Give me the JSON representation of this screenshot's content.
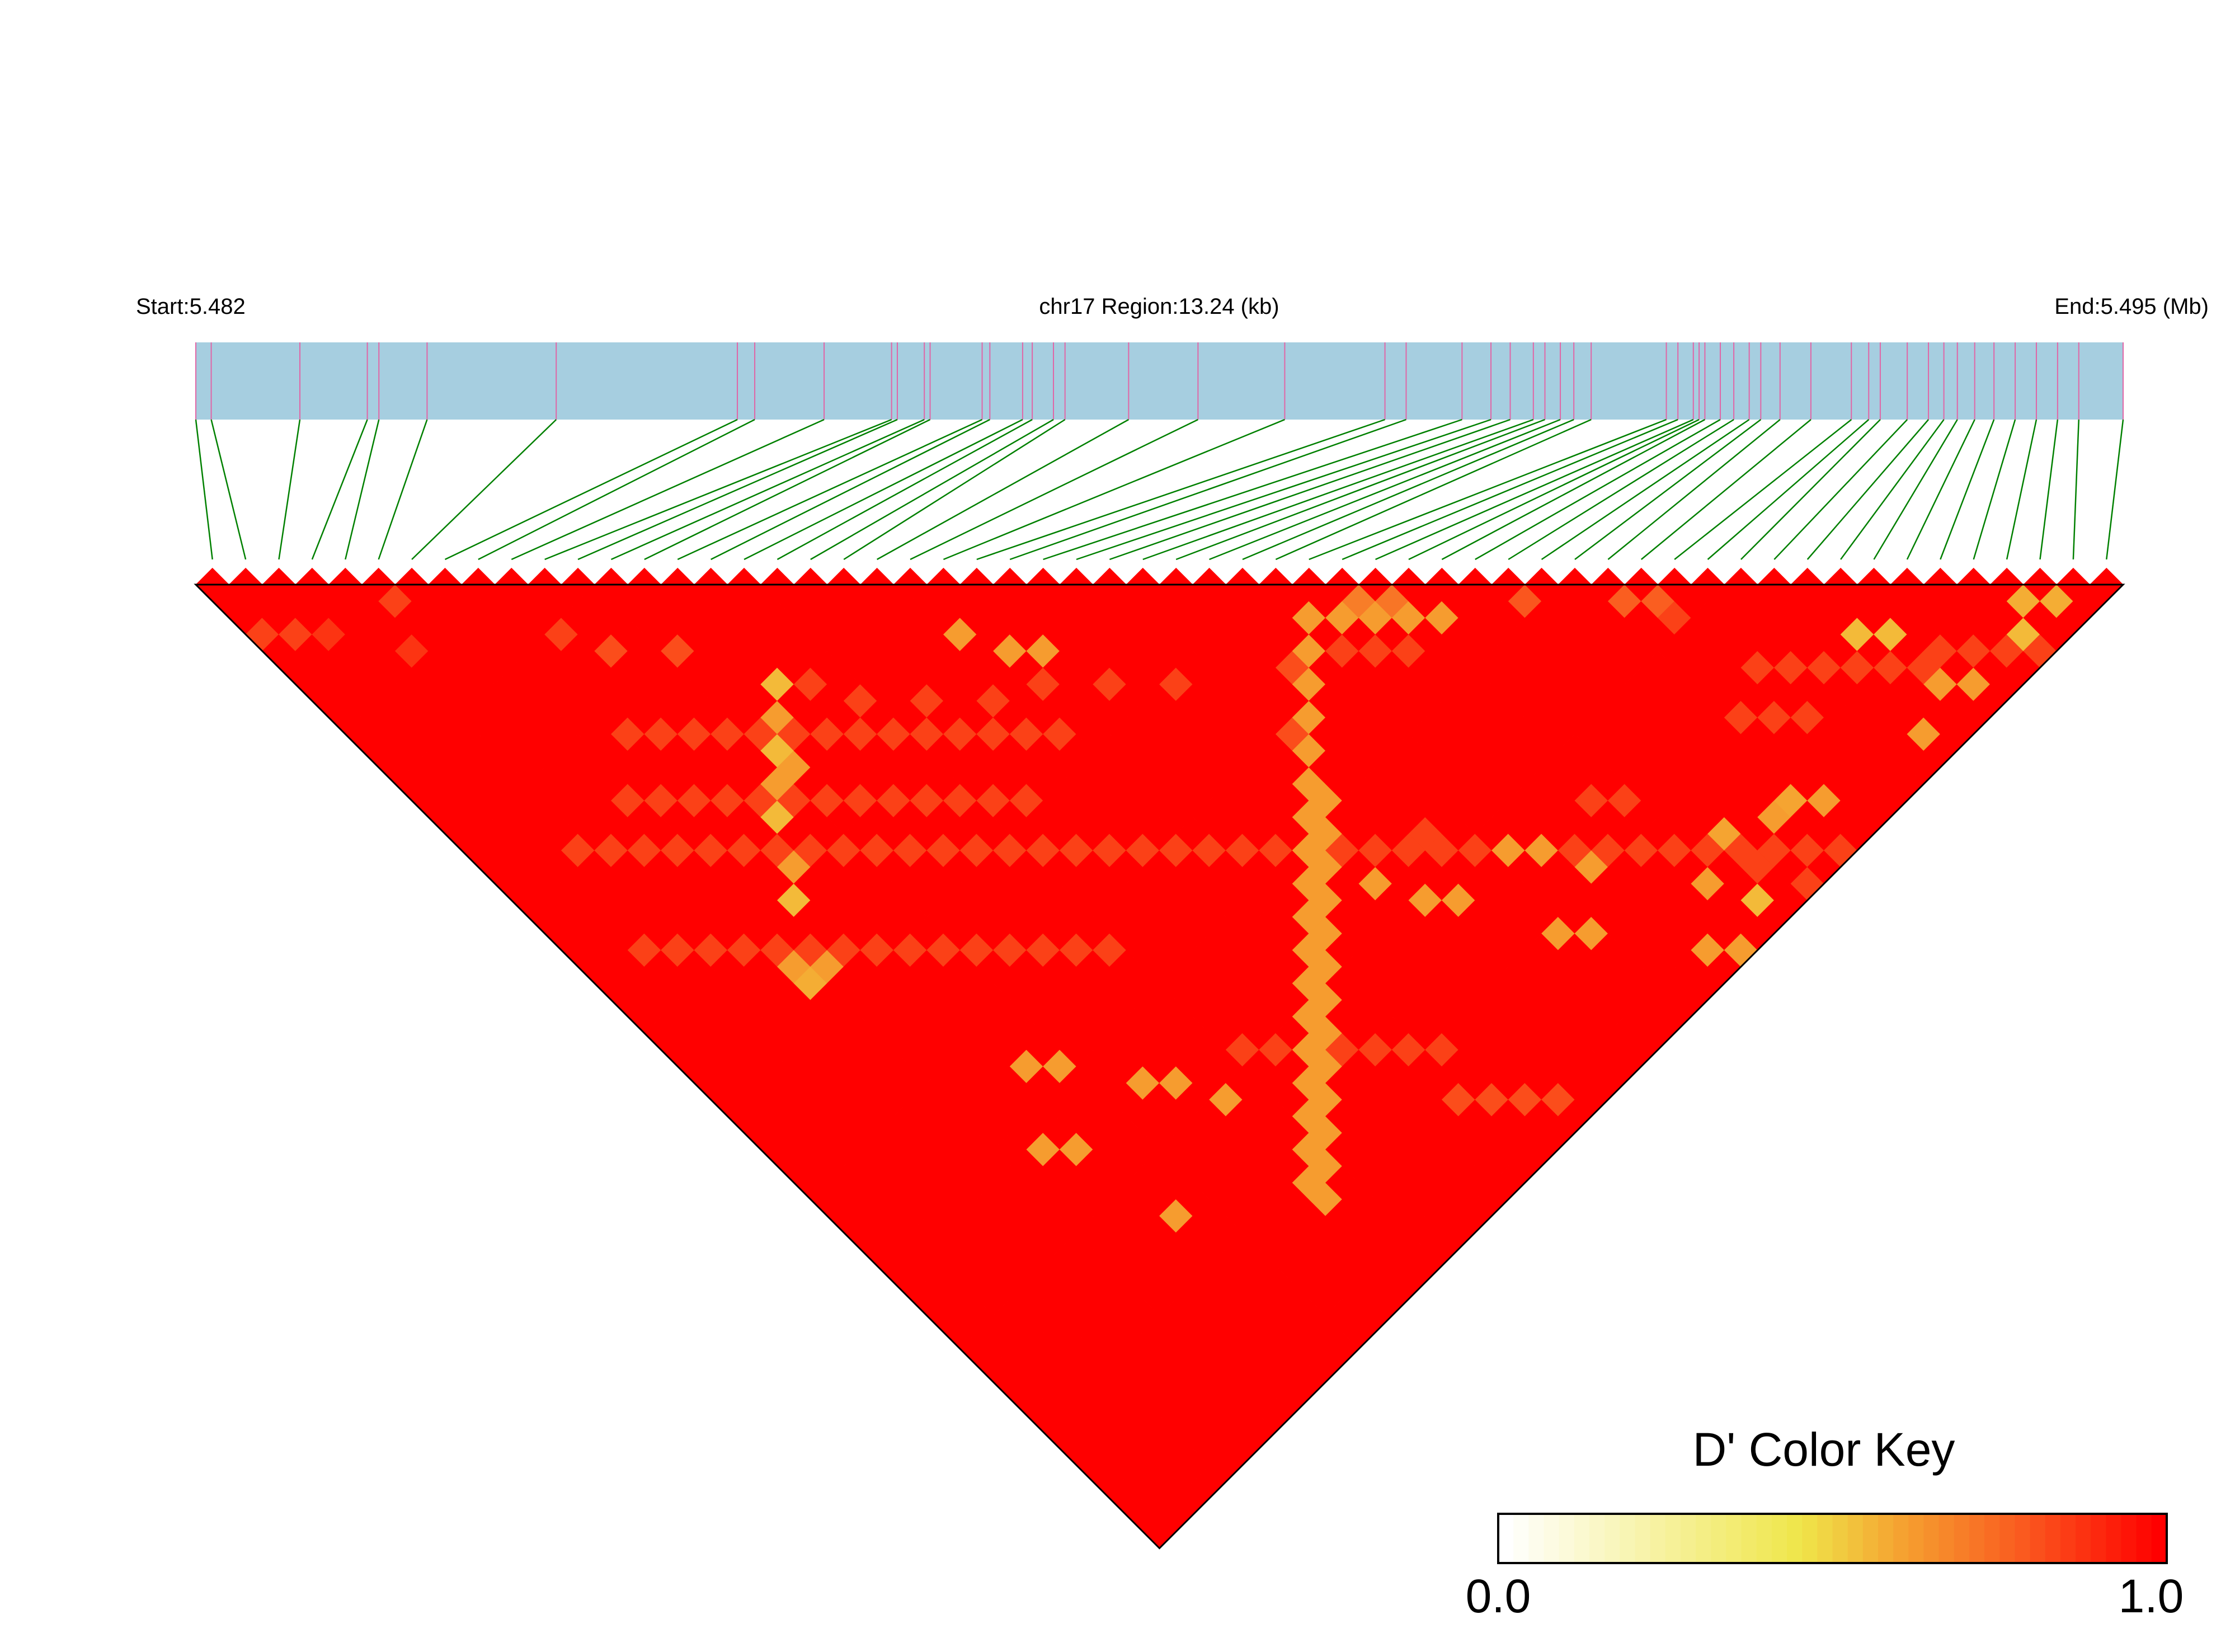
{
  "header": {
    "start_label": "Start:5.482",
    "region_label": "chr17 Region:13.24 (kb)",
    "end_label": "End:5.495 (Mb)"
  },
  "legend": {
    "title": "D' Color Key",
    "min_label": "0.0",
    "max_label": "1.0",
    "colors": [
      "#ffffff",
      "#fffbe0",
      "#fdf5b8",
      "#f8ee8c",
      "#f3e86b",
      "#efe64a",
      "#f5c13c",
      "#f5a431",
      "#f68a2a",
      "#f87024",
      "#fa561e",
      "#fc3a16",
      "#fe1d0a",
      "#ff0000"
    ]
  },
  "colors": {
    "track_fill": "#a6cee0",
    "snp_tick": "#e066a6",
    "connector": "#008000",
    "base_cell": "#ff0000"
  },
  "chart_data": {
    "type": "heatmap",
    "title": "chr17 Region:13.24 (kb)",
    "region_start_mb": 5.482,
    "region_end_mb": 5.495,
    "snp_count": 58,
    "snp_positions_frac": [
      0.0,
      0.008,
      0.054,
      0.089,
      0.095,
      0.12,
      0.187,
      0.281,
      0.29,
      0.326,
      0.361,
      0.364,
      0.378,
      0.381,
      0.408,
      0.412,
      0.429,
      0.434,
      0.445,
      0.451,
      0.484,
      0.52,
      0.565,
      0.617,
      0.628,
      0.657,
      0.672,
      0.682,
      0.694,
      0.7,
      0.708,
      0.715,
      0.724,
      0.763,
      0.769,
      0.777,
      0.78,
      0.783,
      0.791,
      0.798,
      0.806,
      0.812,
      0.822,
      0.838,
      0.859,
      0.868,
      0.874,
      0.888,
      0.899,
      0.907,
      0.914,
      0.923,
      0.933,
      0.944,
      0.955,
      0.966,
      0.977,
      1.0
    ],
    "dprime_default": 1.0,
    "dprime_exceptions": [
      {
        "i": 0,
        "j": 3,
        "d": 0.85
      },
      {
        "i": 1,
        "j": 4,
        "d": 0.85
      },
      {
        "i": 2,
        "j": 5,
        "d": 0.88
      },
      {
        "i": 4,
        "j": 8,
        "d": 0.88
      },
      {
        "i": 5,
        "j": 6,
        "d": 0.85
      },
      {
        "i": 9,
        "j": 12,
        "d": 0.85
      },
      {
        "i": 10,
        "j": 14,
        "d": 0.82
      },
      {
        "i": 12,
        "j": 16,
        "d": 0.82
      },
      {
        "i": 15,
        "j": 21,
        "d": 0.85
      },
      {
        "i": 16,
        "j": 23,
        "d": 0.85
      },
      {
        "i": 18,
        "j": 25,
        "d": 0.85
      },
      {
        "i": 20,
        "j": 27,
        "d": 0.85
      },
      {
        "i": 22,
        "j": 28,
        "d": 0.85
      },
      {
        "i": 24,
        "j": 30,
        "d": 0.85
      },
      {
        "i": 26,
        "j": 32,
        "d": 0.85
      },
      {
        "i": 8,
        "j": 17,
        "d": 0.85
      },
      {
        "i": 9,
        "j": 18,
        "d": 0.85
      },
      {
        "i": 10,
        "j": 19,
        "d": 0.85
      },
      {
        "i": 11,
        "j": 20,
        "d": 0.85
      },
      {
        "i": 12,
        "j": 21,
        "d": 0.85
      },
      {
        "i": 13,
        "j": 22,
        "d": 0.85
      },
      {
        "i": 14,
        "j": 23,
        "d": 0.85
      },
      {
        "i": 15,
        "j": 24,
        "d": 0.85
      },
      {
        "i": 16,
        "j": 25,
        "d": 0.85
      },
      {
        "i": 17,
        "j": 26,
        "d": 0.85
      },
      {
        "i": 18,
        "j": 27,
        "d": 0.85
      },
      {
        "i": 19,
        "j": 28,
        "d": 0.85
      },
      {
        "i": 20,
        "j": 29,
        "d": 0.85
      },
      {
        "i": 21,
        "j": 30,
        "d": 0.85
      },
      {
        "i": 6,
        "j": 19,
        "d": 0.85
      },
      {
        "i": 7,
        "j": 20,
        "d": 0.85
      },
      {
        "i": 8,
        "j": 21,
        "d": 0.85
      },
      {
        "i": 9,
        "j": 22,
        "d": 0.85
      },
      {
        "i": 10,
        "j": 23,
        "d": 0.85
      },
      {
        "i": 11,
        "j": 24,
        "d": 0.85
      },
      {
        "i": 12,
        "j": 25,
        "d": 0.85
      },
      {
        "i": 13,
        "j": 26,
        "d": 0.85
      },
      {
        "i": 14,
        "j": 27,
        "d": 0.85
      },
      {
        "i": 15,
        "j": 28,
        "d": 0.85
      },
      {
        "i": 16,
        "j": 29,
        "d": 0.85
      },
      {
        "i": 17,
        "j": 30,
        "d": 0.85
      },
      {
        "i": 18,
        "j": 31,
        "d": 0.85
      },
      {
        "i": 3,
        "j": 19,
        "d": 0.85
      },
      {
        "i": 4,
        "j": 20,
        "d": 0.85
      },
      {
        "i": 5,
        "j": 21,
        "d": 0.85
      },
      {
        "i": 6,
        "j": 22,
        "d": 0.85
      },
      {
        "i": 7,
        "j": 23,
        "d": 0.85
      },
      {
        "i": 8,
        "j": 24,
        "d": 0.85
      },
      {
        "i": 9,
        "j": 25,
        "d": 0.85
      },
      {
        "i": 10,
        "j": 26,
        "d": 0.85
      },
      {
        "i": 11,
        "j": 27,
        "d": 0.85
      },
      {
        "i": 12,
        "j": 28,
        "d": 0.85
      },
      {
        "i": 13,
        "j": 29,
        "d": 0.85
      },
      {
        "i": 14,
        "j": 30,
        "d": 0.85
      },
      {
        "i": 15,
        "j": 31,
        "d": 0.85
      },
      {
        "i": 16,
        "j": 32,
        "d": 0.85
      },
      {
        "i": 17,
        "j": 33,
        "d": 0.85
      },
      {
        "i": 18,
        "j": 34,
        "d": 0.85
      },
      {
        "i": 19,
        "j": 35,
        "d": 0.85
      },
      {
        "i": 20,
        "j": 36,
        "d": 0.85
      },
      {
        "i": 21,
        "j": 37,
        "d": 0.85
      },
      {
        "i": 22,
        "j": 38,
        "d": 0.85
      },
      {
        "i": 23,
        "j": 39,
        "d": 0.85
      },
      {
        "i": 24,
        "j": 40,
        "d": 0.85
      },
      {
        "i": 25,
        "j": 41,
        "d": 0.85
      },
      {
        "i": 26,
        "j": 42,
        "d": 0.85
      },
      {
        "i": 27,
        "j": 43,
        "d": 0.85
      },
      {
        "i": 28,
        "j": 44,
        "d": 0.85
      },
      {
        "i": 29,
        "j": 45,
        "d": 0.85
      },
      {
        "i": 30,
        "j": 46,
        "d": 0.85
      },
      {
        "i": 31,
        "j": 47,
        "d": 0.85
      },
      {
        "i": 32,
        "j": 48,
        "d": 0.85
      },
      {
        "i": 33,
        "j": 49,
        "d": 0.85
      },
      {
        "i": 34,
        "j": 50,
        "d": 0.85
      },
      {
        "i": 35,
        "j": 51,
        "d": 0.85
      },
      {
        "i": 36,
        "j": 52,
        "d": 0.85
      },
      {
        "i": 37,
        "j": 53,
        "d": 0.85
      },
      {
        "i": 38,
        "j": 54,
        "d": 0.85
      },
      {
        "i": 39,
        "j": 55,
        "d": 0.85
      },
      {
        "i": 40,
        "j": 56,
        "d": 0.85
      },
      {
        "i": 41,
        "j": 57,
        "d": 0.85
      },
      {
        "i": 2,
        "j": 24,
        "d": 0.85
      },
      {
        "i": 3,
        "j": 25,
        "d": 0.85
      },
      {
        "i": 4,
        "j": 26,
        "d": 0.85
      },
      {
        "i": 5,
        "j": 27,
        "d": 0.85
      },
      {
        "i": 6,
        "j": 28,
        "d": 0.85
      },
      {
        "i": 7,
        "j": 29,
        "d": 0.85
      },
      {
        "i": 8,
        "j": 30,
        "d": 0.85
      },
      {
        "i": 9,
        "j": 31,
        "d": 0.85
      },
      {
        "i": 10,
        "j": 32,
        "d": 0.85
      },
      {
        "i": 11,
        "j": 33,
        "d": 0.85
      },
      {
        "i": 12,
        "j": 34,
        "d": 0.85
      },
      {
        "i": 13,
        "j": 35,
        "d": 0.85
      },
      {
        "i": 14,
        "j": 36,
        "d": 0.85
      },
      {
        "i": 15,
        "j": 37,
        "d": 0.85
      },
      {
        "i": 16,
        "j": 38,
        "d": 0.85
      },
      {
        "i": 17,
        "j": 45,
        "d": 0.85
      },
      {
        "i": 18,
        "j": 46,
        "d": 0.85
      },
      {
        "i": 19,
        "j": 47,
        "d": 0.85
      },
      {
        "i": 20,
        "j": 48,
        "d": 0.85
      },
      {
        "i": 21,
        "j": 49,
        "d": 0.85
      },
      {
        "i": 22,
        "j": 50,
        "d": 0.85
      },
      {
        "i": 23,
        "j": 51,
        "d": 0.85
      },
      {
        "i": 22,
        "j": 53,
        "d": 0.82
      },
      {
        "i": 23,
        "j": 54,
        "d": 0.82
      },
      {
        "i": 24,
        "j": 55,
        "d": 0.82
      },
      {
        "i": 25,
        "j": 56,
        "d": 0.82
      },
      {
        "i": 30,
        "j": 35,
        "d": 0.82
      },
      {
        "i": 28,
        "j": 37,
        "d": 0.82
      },
      {
        "i": 29,
        "j": 44,
        "d": 0.85
      },
      {
        "i": 32,
        "j": 36,
        "d": 0.85
      },
      {
        "i": 33,
        "j": 37,
        "d": 0.85
      },
      {
        "i": 34,
        "j": 38,
        "d": 0.85
      },
      {
        "i": 43,
        "j": 45,
        "d": 0.85
      },
      {
        "i": 44,
        "j": 49,
        "d": 0.85
      },
      {
        "i": 45,
        "j": 50,
        "d": 0.85
      },
      {
        "i": 46,
        "j": 51,
        "d": 0.85
      },
      {
        "i": 47,
        "j": 52,
        "d": 0.85
      },
      {
        "i": 48,
        "j": 53,
        "d": 0.85
      },
      {
        "i": 49,
        "j": 54,
        "d": 0.85
      },
      {
        "i": 50,
        "j": 54,
        "d": 0.85
      },
      {
        "i": 51,
        "j": 55,
        "d": 0.85
      },
      {
        "i": 52,
        "j": 56,
        "d": 0.85
      },
      {
        "i": 53,
        "j": 57,
        "d": 0.85
      },
      {
        "i": 42,
        "j": 50,
        "d": 0.85
      },
      {
        "i": 43,
        "j": 51,
        "d": 0.85
      },
      {
        "i": 44,
        "j": 52,
        "d": 0.85
      },
      {
        "i": 38,
        "j": 55,
        "d": 0.85
      },
      {
        "i": 39,
        "j": 57,
        "d": 0.85
      },
      {
        "i": 35,
        "j": 48,
        "d": 0.85
      },
      {
        "i": 36,
        "j": 49,
        "d": 0.85
      },
      {
        "i": 34,
        "j": 35,
        "d": 0.7
      },
      {
        "i": 35,
        "j": 36,
        "d": 0.72
      },
      {
        "i": 32,
        "j": 34,
        "d": 0.62
      },
      {
        "i": 33,
        "j": 35,
        "d": 0.62
      },
      {
        "i": 34,
        "j": 36,
        "d": 0.62
      },
      {
        "i": 35,
        "j": 37,
        "d": 0.62
      },
      {
        "i": 36,
        "j": 38,
        "d": 0.62
      },
      {
        "i": 31,
        "j": 35,
        "d": 0.62
      },
      {
        "i": 30,
        "j": 36,
        "d": 0.62
      },
      {
        "i": 29,
        "j": 37,
        "d": 0.62
      },
      {
        "i": 28,
        "j": 38,
        "d": 0.62
      },
      {
        "i": 27,
        "j": 39,
        "d": 0.62
      },
      {
        "i": 27,
        "j": 40,
        "d": 0.62
      },
      {
        "i": 26,
        "j": 40,
        "d": 0.62
      },
      {
        "i": 26,
        "j": 41,
        "d": 0.62
      },
      {
        "i": 25,
        "j": 41,
        "d": 0.62
      },
      {
        "i": 25,
        "j": 42,
        "d": 0.62
      },
      {
        "i": 24,
        "j": 42,
        "d": 0.62
      },
      {
        "i": 24,
        "j": 43,
        "d": 0.62
      },
      {
        "i": 23,
        "j": 43,
        "d": 0.62
      },
      {
        "i": 23,
        "j": 44,
        "d": 0.62
      },
      {
        "i": 22,
        "j": 44,
        "d": 0.62
      },
      {
        "i": 22,
        "j": 45,
        "d": 0.62
      },
      {
        "i": 21,
        "j": 45,
        "d": 0.62
      },
      {
        "i": 21,
        "j": 46,
        "d": 0.62
      },
      {
        "i": 20,
        "j": 46,
        "d": 0.62
      },
      {
        "i": 20,
        "j": 47,
        "d": 0.62
      },
      {
        "i": 19,
        "j": 47,
        "d": 0.62
      },
      {
        "i": 19,
        "j": 48,
        "d": 0.62
      },
      {
        "i": 18,
        "j": 48,
        "d": 0.62
      },
      {
        "i": 18,
        "j": 49,
        "d": 0.62
      },
      {
        "i": 17,
        "j": 49,
        "d": 0.62
      },
      {
        "i": 17,
        "j": 50,
        "d": 0.62
      },
      {
        "i": 16,
        "j": 50,
        "d": 0.62
      },
      {
        "i": 16,
        "j": 51,
        "d": 0.62
      },
      {
        "i": 15,
        "j": 51,
        "d": 0.62
      },
      {
        "i": 15,
        "j": 52,
        "d": 0.62
      },
      {
        "i": 48,
        "j": 51,
        "d": 0.55
      },
      {
        "i": 49,
        "j": 52,
        "d": 0.55
      },
      {
        "i": 54,
        "j": 55,
        "d": 0.58
      },
      {
        "i": 55,
        "j": 56,
        "d": 0.58
      },
      {
        "i": 53,
        "j": 56,
        "d": 0.55
      },
      {
        "i": 22,
        "j": 26,
        "d": 0.62
      },
      {
        "i": 23,
        "j": 27,
        "d": 0.62
      },
      {
        "i": 21,
        "j": 24,
        "d": 0.62
      },
      {
        "i": 14,
        "j": 20,
        "d": 0.55
      },
      {
        "i": 13,
        "j": 21,
        "d": 0.62
      },
      {
        "i": 12,
        "j": 22,
        "d": 0.55
      },
      {
        "i": 12,
        "j": 23,
        "d": 0.62
      },
      {
        "i": 10,
        "j": 24,
        "d": 0.55
      },
      {
        "i": 11,
        "j": 23,
        "d": 0.62
      },
      {
        "i": 9,
        "j": 26,
        "d": 0.62
      },
      {
        "i": 8,
        "j": 27,
        "d": 0.55
      },
      {
        "i": 6,
        "j": 30,
        "d": 0.58
      },
      {
        "i": 7,
        "j": 30,
        "d": 0.62
      },
      {
        "i": 6,
        "j": 29,
        "d": 0.62
      },
      {
        "i": 38,
        "j": 53,
        "d": 0.6
      },
      {
        "i": 40,
        "j": 54,
        "d": 0.62
      },
      {
        "i": 41,
        "j": 54,
        "d": 0.6
      },
      {
        "i": 42,
        "j": 55,
        "d": 0.62
      },
      {
        "i": 36,
        "j": 54,
        "d": 0.62
      },
      {
        "i": 37,
        "j": 56,
        "d": 0.55
      },
      {
        "i": 35,
        "j": 57,
        "d": 0.62
      },
      {
        "i": 34,
        "j": 56,
        "d": 0.62
      },
      {
        "i": 42,
        "j": 43,
        "d": 0.78
      },
      {
        "i": 43,
        "j": 44,
        "d": 0.78
      },
      {
        "i": 39,
        "j": 40,
        "d": 0.8
      },
      {
        "i": 50,
        "j": 56,
        "d": 0.62
      },
      {
        "i": 49,
        "j": 55,
        "d": 0.62
      },
      {
        "i": 47,
        "j": 56,
        "d": 0.62
      },
      {
        "i": 26,
        "j": 44,
        "d": 0.62
      },
      {
        "i": 27,
        "j": 46,
        "d": 0.62
      },
      {
        "i": 28,
        "j": 47,
        "d": 0.62
      },
      {
        "i": 31,
        "j": 47,
        "d": 0.62
      },
      {
        "i": 32,
        "j": 48,
        "d": 0.62
      },
      {
        "i": 33,
        "j": 50,
        "d": 0.62
      },
      {
        "i": 30,
        "j": 51,
        "d": 0.62
      },
      {
        "i": 31,
        "j": 52,
        "d": 0.62
      },
      {
        "i": 10,
        "j": 39,
        "d": 0.62
      },
      {
        "i": 11,
        "j": 40,
        "d": 0.62
      },
      {
        "i": 8,
        "j": 42,
        "d": 0.62
      },
      {
        "i": 9,
        "j": 43,
        "d": 0.62
      },
      {
        "i": 13,
        "j": 43,
        "d": 0.62
      },
      {
        "i": 14,
        "j": 44,
        "d": 0.62
      },
      {
        "i": 15,
        "j": 46,
        "d": 0.62
      },
      {
        "i": 10,
        "j": 48,
        "d": 0.62
      }
    ]
  }
}
